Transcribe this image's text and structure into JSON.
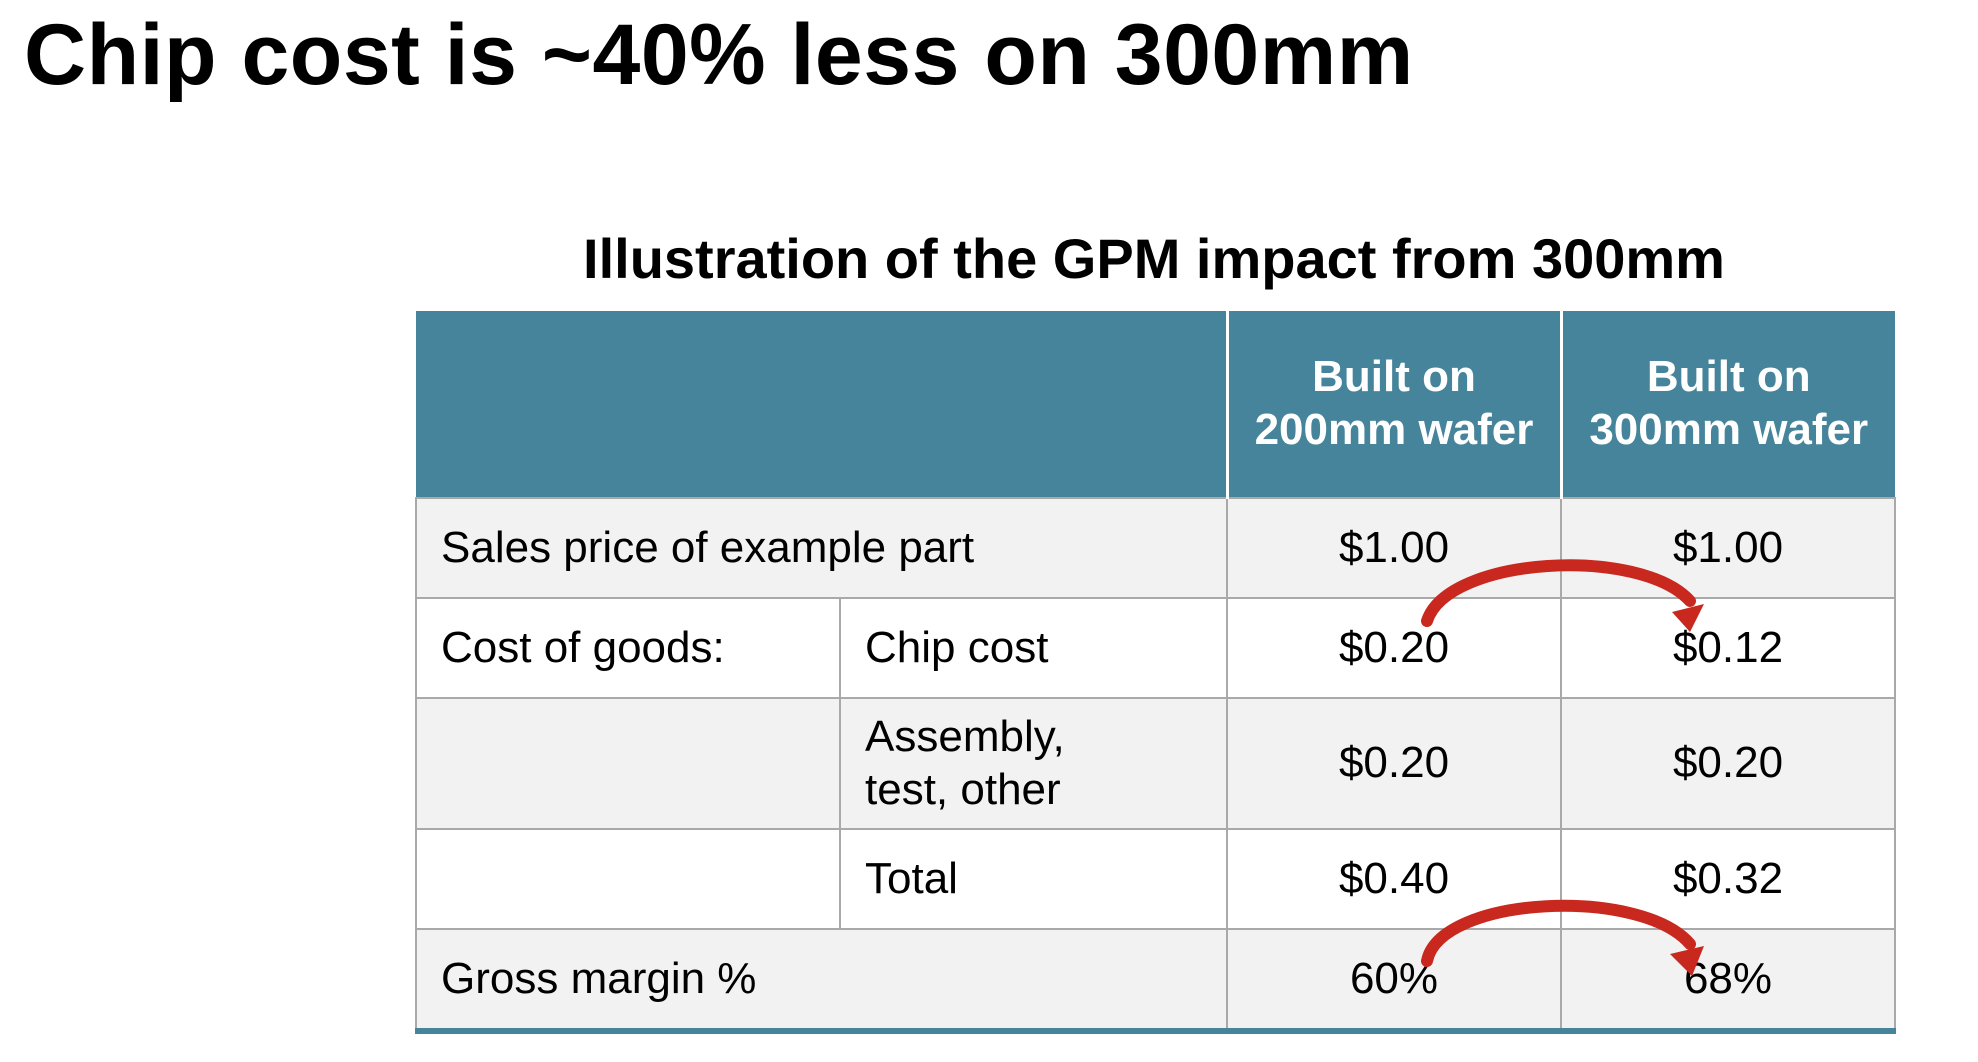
{
  "slide": {
    "title": "Chip cost is ~40% less on 300mm"
  },
  "table": {
    "caption": "Illustration of the GPM impact from 300mm",
    "header": {
      "col1": "",
      "col2": "",
      "col3": "Built on 200mm wafer",
      "col4": "Built on 300mm wafer"
    },
    "rows": [
      {
        "label": "Sales price of example part",
        "sublabel": "",
        "val_200mm": "$1.00",
        "val_300mm": "$1.00"
      },
      {
        "label": "Cost of goods:",
        "sublabel": "Chip cost",
        "val_200mm": "$0.20",
        "val_300mm": "$0.12"
      },
      {
        "label": "",
        "sublabel": "Assembly, test, other",
        "val_200mm": "$0.20",
        "val_300mm": "$0.20"
      },
      {
        "label": "",
        "sublabel": "Total",
        "val_200mm": "$0.40",
        "val_300mm": "$0.32"
      },
      {
        "label": "Gross margin %",
        "sublabel": "",
        "val_200mm": "60%",
        "val_300mm": "68%"
      }
    ]
  },
  "annotations": {
    "arrow_color": "#c8281e",
    "header_color": "#45849a",
    "row_shade_color": "#f2f2f2",
    "arrows": [
      {
        "from": "$0.20",
        "to": "$0.12"
      },
      {
        "from": "60%",
        "to": "68%"
      }
    ]
  }
}
